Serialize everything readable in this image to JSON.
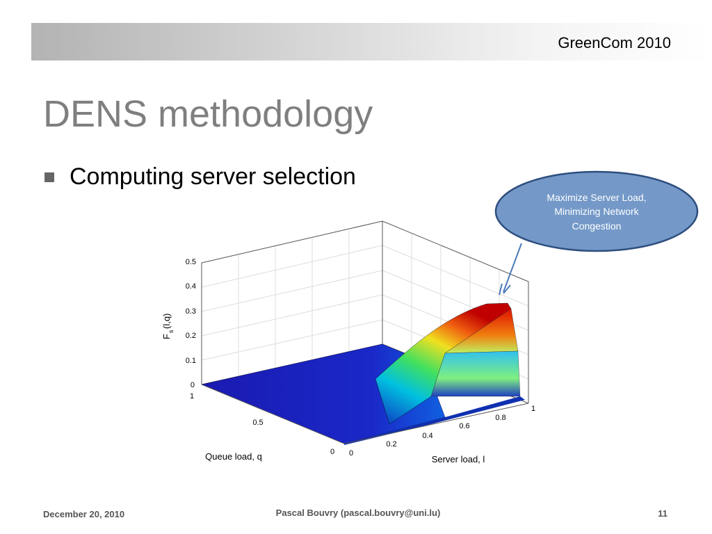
{
  "header": {
    "event": "GreenCom 2010"
  },
  "title": "DENS methodology",
  "bullets": [
    "Computing server selection"
  ],
  "callout": {
    "lines": [
      "Maximize Server Load,",
      "Minimizing Network",
      "Congestion"
    ]
  },
  "figure": {
    "z_label": "F",
    "z_label_sub": "s",
    "z_label_args": "(l,q)",
    "x_label": "Server load, l",
    "y_label": "Queue load, q",
    "z_ticks": [
      "0",
      "0.1",
      "0.2",
      "0.3",
      "0.4",
      "0.5"
    ],
    "x_ticks": [
      "0",
      "0.2",
      "0.4",
      "0.6",
      "0.8",
      "1"
    ],
    "y_ticks": [
      "0",
      "0.5",
      "1"
    ]
  },
  "footer": {
    "date": "December 20, 2010",
    "author": "Pascal Bouvry (pascal.bouvry@uni.lu)",
    "page": "11"
  }
}
